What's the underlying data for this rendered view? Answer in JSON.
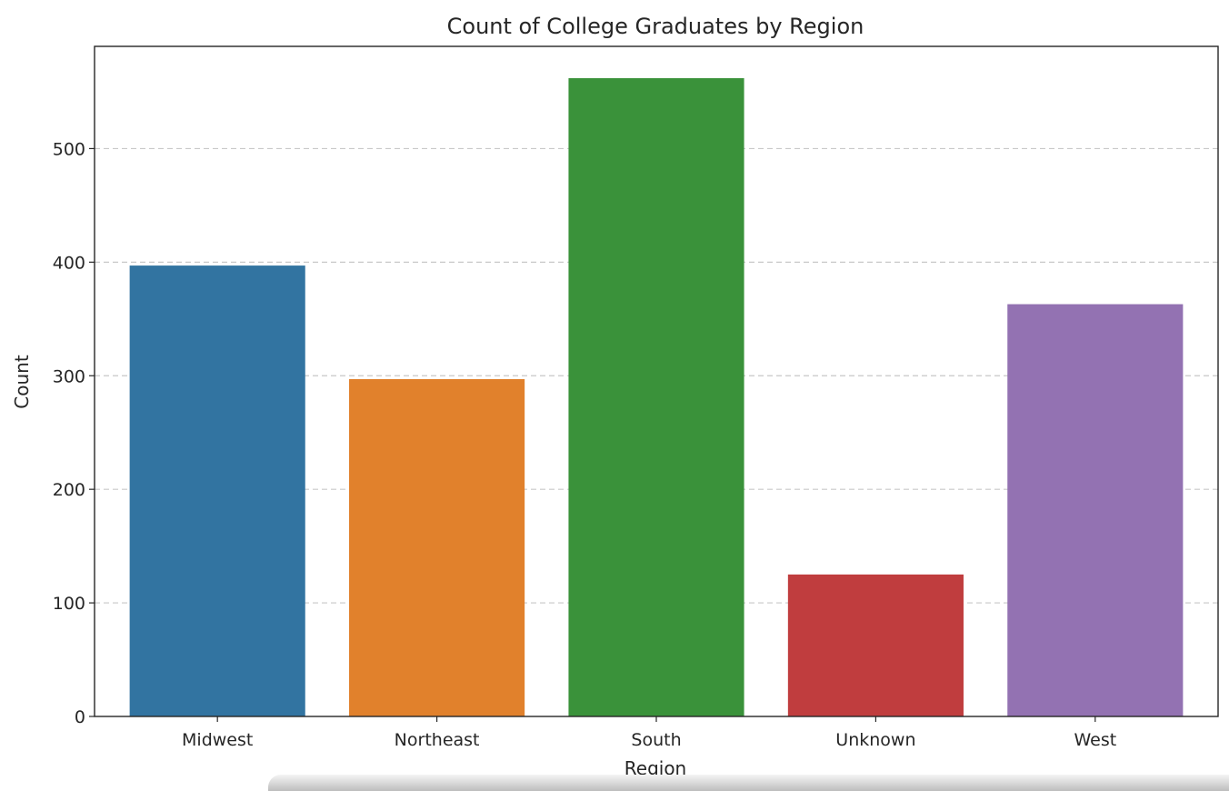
{
  "chart_data": {
    "type": "bar",
    "title": "Count of College Graduates by Region",
    "xlabel": "Region",
    "ylabel": "Count",
    "categories": [
      "Midwest",
      "Northeast",
      "South",
      "Unknown",
      "West"
    ],
    "values": [
      397,
      297,
      562,
      125,
      363
    ],
    "colors": [
      "#3274a1",
      "#e1812c",
      "#3a923a",
      "#c03d3e",
      "#9372b2"
    ],
    "ylim": [
      0,
      590
    ],
    "yticks": [
      0,
      100,
      200,
      300,
      400,
      500
    ],
    "grid": "y-dashed",
    "legend": "none"
  }
}
